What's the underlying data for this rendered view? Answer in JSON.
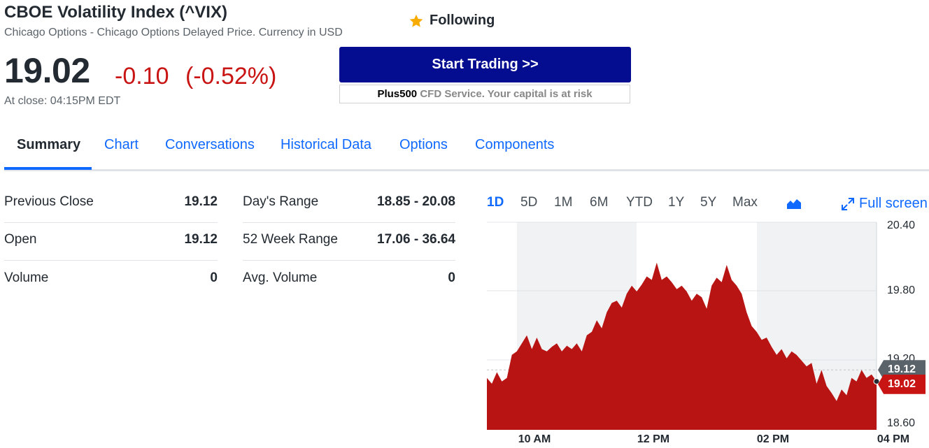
{
  "quote": {
    "title": "CBOE Volatility Index (^VIX)",
    "subtitle": "Chicago Options - Chicago Options Delayed Price. Currency in USD",
    "price": "19.02",
    "change": "-0.10",
    "change_pct": "(-0.52%)",
    "close_time": "At close: 04:15PM EDT",
    "follow_label": "Following",
    "follow_icon": "star-icon"
  },
  "ad": {
    "button_label": "Start Trading >>",
    "brand": "Plus500",
    "note": " CFD Service. Your capital is at risk",
    "button_color": "#040d8f"
  },
  "tabs": [
    {
      "label": "Summary",
      "active": true
    },
    {
      "label": "Chart"
    },
    {
      "label": "Conversations"
    },
    {
      "label": "Historical Data"
    },
    {
      "label": "Options"
    },
    {
      "label": "Components"
    }
  ],
  "stats": {
    "left": [
      {
        "label": "Previous Close",
        "value": "19.12"
      },
      {
        "label": "Open",
        "value": "19.12"
      },
      {
        "label": "Volume",
        "value": "0"
      }
    ],
    "right": [
      {
        "label": "Day's Range",
        "value": "18.85 - 20.08"
      },
      {
        "label": "52 Week Range",
        "value": "17.06 - 36.64"
      },
      {
        "label": "Avg. Volume",
        "value": "0"
      }
    ]
  },
  "chart_controls": {
    "ranges": [
      "1D",
      "5D",
      "1M",
      "6M",
      "YTD",
      "1Y",
      "5Y",
      "Max"
    ],
    "active_range": "1D",
    "chart_type_icon": "mountain-chart-icon",
    "fullscreen_label": "Full screen",
    "fullscreen_icon": "expand-icon"
  },
  "chart_data": {
    "type": "area",
    "y_ticks": [
      "20.40",
      "19.80",
      "19.20",
      "18.60"
    ],
    "ylim": [
      18.6,
      20.4
    ],
    "x_ticks": [
      "10 AM",
      "12 PM",
      "02 PM",
      "04 PM"
    ],
    "previous_close": {
      "value": 19.12,
      "label": "19.12"
    },
    "last": {
      "value": 19.02,
      "label": "19.02"
    },
    "color": "#b91414",
    "series": [
      {
        "x": [
          "09:30",
          "09:35",
          "09:40",
          "09:45",
          "09:50",
          "09:55",
          "10:00",
          "10:05",
          "10:10",
          "10:15",
          "10:20",
          "10:25",
          "10:30",
          "10:35",
          "10:40",
          "10:45",
          "10:50",
          "10:55",
          "11:00",
          "11:05",
          "11:10",
          "11:15",
          "11:20",
          "11:25",
          "11:30",
          "11:35",
          "11:40",
          "11:45",
          "11:50",
          "11:55",
          "12:00",
          "12:05",
          "12:10",
          "12:15",
          "12:20",
          "12:25",
          "12:30",
          "12:35",
          "12:40",
          "12:45",
          "12:50",
          "12:55",
          "13:00",
          "13:05",
          "13:10",
          "13:15",
          "13:20",
          "13:25",
          "13:30",
          "13:35",
          "13:40",
          "13:45",
          "13:50",
          "13:55",
          "14:00",
          "14:05",
          "14:10",
          "14:15",
          "14:20",
          "14:25",
          "14:30",
          "14:35",
          "14:40",
          "14:45",
          "14:50",
          "14:55",
          "15:00",
          "15:05",
          "15:10",
          "15:15",
          "15:20",
          "15:25",
          "15:30",
          "15:35",
          "15:40",
          "15:45",
          "15:50",
          "15:55",
          "16:00"
        ],
        "values": [
          19.05,
          19.0,
          19.1,
          19.02,
          19.05,
          19.25,
          19.28,
          19.35,
          19.42,
          19.3,
          19.4,
          19.3,
          19.28,
          19.32,
          19.35,
          19.28,
          19.33,
          19.3,
          19.35,
          19.28,
          19.42,
          19.45,
          19.55,
          19.48,
          19.62,
          19.7,
          19.72,
          19.66,
          19.78,
          19.85,
          19.8,
          19.86,
          19.93,
          19.9,
          20.05,
          19.9,
          19.93,
          19.88,
          19.82,
          19.85,
          19.8,
          19.72,
          19.78,
          19.75,
          19.65,
          19.85,
          19.92,
          19.88,
          20.03,
          19.9,
          19.85,
          19.78,
          19.62,
          19.5,
          19.45,
          19.38,
          19.4,
          19.32,
          19.25,
          19.3,
          19.22,
          19.28,
          19.25,
          19.2,
          19.15,
          19.18,
          19.0,
          19.12,
          18.98,
          18.92,
          18.85,
          18.95,
          18.9,
          19.05,
          19.02,
          19.12,
          19.05,
          19.08,
          19.02
        ]
      }
    ]
  }
}
